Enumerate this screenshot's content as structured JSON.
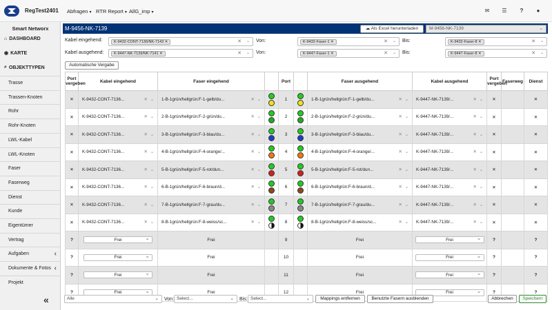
{
  "app": {
    "name": "RegTest2401"
  },
  "topmenu": [
    {
      "label": "Abfragen"
    },
    {
      "label": "RTR Report"
    },
    {
      "label": "AllG_imp"
    }
  ],
  "sidebar": {
    "title": "Smart Networx",
    "headers": [
      {
        "label": "DASHBOARD",
        "icon": "home-icon"
      },
      {
        "label": "KARTE",
        "icon": "globe-icon"
      },
      {
        "label": "OBJEKTTYPEN",
        "icon": "search-icon"
      }
    ],
    "items": [
      {
        "label": "Trasse"
      },
      {
        "label": "Trassen-Knoten"
      },
      {
        "label": "Rohr"
      },
      {
        "label": "Rohr-Knoten"
      },
      {
        "label": "LWL-Kabel"
      },
      {
        "label": "LWL-Knoten"
      },
      {
        "label": "Faser"
      },
      {
        "label": "Faserweg"
      },
      {
        "label": "Dienst"
      },
      {
        "label": "Kunde"
      },
      {
        "label": "Eigentümer"
      },
      {
        "label": "Vertrag"
      },
      {
        "label": "Aufgaben"
      },
      {
        "label": "Dokumente & Fotos"
      },
      {
        "label": "Projekt"
      }
    ],
    "collapse_glyph": "«"
  },
  "main": {
    "title": "M-9456-NK-7139",
    "excel_button": "Als Excel herunterladen",
    "network_select": "M-9456-NK-7139",
    "filters": {
      "kabel_eingehend_label": "Kabel eingehend:",
      "kabel_eingehend_tag": "K-9432-CONT-7136/NK-7143",
      "kabel_ausgehend_label": "Kabel ausgehend:",
      "kabel_ausgehend_tag": "K-9447-NK-7139/NK-7141",
      "von_label": "Von:",
      "bis_label": "Bis:",
      "von_in": "K-9432-Faser-1",
      "bis_in": "K-9432-Faser-8",
      "von_out": "K-9447-Faser-1",
      "bis_out": "K-9447-Faser-8"
    },
    "auto_button": "Automatische Vergabe",
    "table": {
      "headers": {
        "port_vergeben": "Port vergeben",
        "kabel_eingehend": "Kabel eingehend",
        "faser_eingehend": "Faser eingehend",
        "port": "Port",
        "faser_ausgehend": "Faser ausgehend",
        "kabel_ausgehend": "Kabel ausgehend",
        "port_vergeben2": "Port vergeben",
        "faserweg": "Faserweg",
        "dienst": "Dienst"
      },
      "rows": [
        {
          "mark": "✕",
          "kin": "K-9432-CONT-7136...",
          "fin": "1-B-1grün/hellgrün:F-1-gelb/du...",
          "port": "1",
          "fout": "1-B-1grün/hellgrün:F-1-gelb/du...",
          "kout": "K-9447-NK-7139/...",
          "mark2": "✕",
          "dienst": "✕"
        },
        {
          "mark": "✕",
          "kin": "K-9432-CONT-7136...",
          "fin": "2-B-1grün/hellgrün:F-2-grün/du...",
          "port": "2",
          "fout": "2-B-1grün/hellgrün:F-2-grün/du...",
          "kout": "K-9447-NK-7139/...",
          "mark2": "✕",
          "dienst": "✕"
        },
        {
          "mark": "✕",
          "kin": "K-9432-CONT-7136...",
          "fin": "3-B-1grün/hellgrün:F-3-blau/du...",
          "port": "3",
          "fout": "3-B-1grün/hellgrün:F-3-blau/du...",
          "kout": "K-9447-NK-7139/...",
          "mark2": "✕",
          "dienst": "✕"
        },
        {
          "mark": "✕",
          "kin": "K-9432-CONT-7136...",
          "fin": "4-B-1grün/hellgrün:F-4-orange/...",
          "port": "4",
          "fout": "4-B-1grün/hellgrün:F-4-orange/...",
          "kout": "K-9447-NK-7139/...",
          "mark2": "✕",
          "dienst": "✕"
        },
        {
          "mark": "✕",
          "kin": "K-9432-CONT-7136...",
          "fin": "5-B-1grün/hellgrün:F-5-rot/dun...",
          "port": "5",
          "fout": "5-B-1grün/hellgrün:F-5-rot/dun...",
          "kout": "K-9447-NK-7139/...",
          "mark2": "✕",
          "dienst": "✕"
        },
        {
          "mark": "✕",
          "kin": "K-9432-CONT-7136...",
          "fin": "6-B-1grün/hellgrün:F-6-braun/d...",
          "port": "6",
          "fout": "6-B-1grün/hellgrün:F-6-braun/d...",
          "kout": "K-9447-NK-7139/...",
          "mark2": "✕",
          "dienst": "✕"
        },
        {
          "mark": "✕",
          "kin": "K-9432-CONT-7136...",
          "fin": "7-B-1grün/hellgrün:F-7-grau/du...",
          "port": "7",
          "fout": "7-B-1grün/hellgrün:F-7-grau/du...",
          "kout": "K-9447-NK-7139/...",
          "mark2": "✕",
          "dienst": "✕"
        },
        {
          "mark": "✕",
          "kin": "K-9432-CONT-7136...",
          "fin": "8-B-1grün/hellgrün:F-8-weiss/sc...",
          "port": "8",
          "fout": "8-B-1grün/hellgrün:F-8-weiss/sc...",
          "kout": "K-9447-NK-7139/...",
          "mark2": "✕",
          "dienst": "✕"
        }
      ],
      "free_rows": [
        {
          "mark": "?",
          "kin": "Frei",
          "fin": "Frei",
          "port": "9",
          "fout": "Frei",
          "kout": "Frei",
          "mark2": "?",
          "dienst": "?"
        },
        {
          "mark": "?",
          "kin": "Frei",
          "fin": "Frei",
          "port": "10",
          "fout": "Frei",
          "kout": "Frei",
          "mark2": "?",
          "dienst": "?"
        },
        {
          "mark": "?",
          "kin": "Frei",
          "fin": "Frei",
          "port": "11",
          "fout": "Frei",
          "kout": "Frei",
          "mark2": "?",
          "dienst": "?"
        },
        {
          "mark": "?",
          "kin": "Frei",
          "fin": "Frei",
          "port": "12",
          "fout": "Frei",
          "kout": "Frei",
          "mark2": "?",
          "dienst": "?"
        }
      ],
      "fiber_colors": [
        "#f0e020",
        "#22aa22",
        "#1a3ec8",
        "#f07a10",
        "#d42020",
        "#8a4a1a",
        "#888888",
        "#ffffff"
      ],
      "bundle_color": "#22cc22"
    },
    "footer": {
      "filter_select": "Alle",
      "von_label": "Von:",
      "von_placeholder": "Select...",
      "bis_label": "Bis:",
      "bis_placeholder": "Select...",
      "mappings_button": "Mappings entfernen",
      "hide_button": "Benutzte Fasern ausblenden",
      "cancel_button": "Abbrechen",
      "save_button": "Speichern"
    }
  },
  "colors": {
    "titlebar": "#003375",
    "save": "#2e8b2e"
  }
}
